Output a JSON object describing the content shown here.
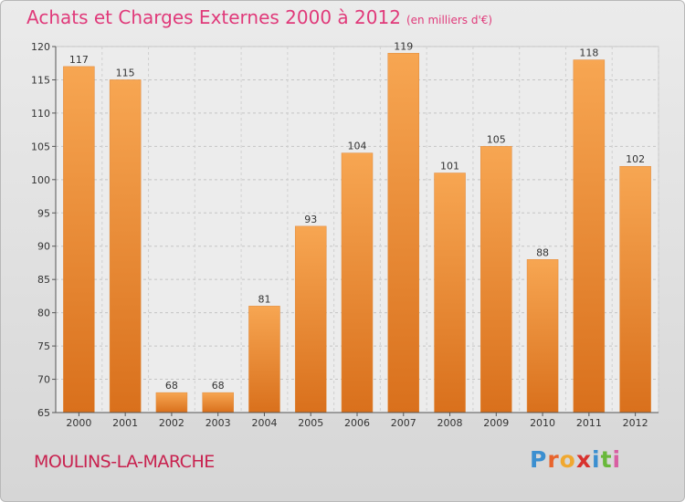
{
  "chart_data": {
    "type": "bar",
    "title": "Achats et Charges Externes 2000 à 2012",
    "subtitle": "(en milliers d'€)",
    "categories": [
      "2000",
      "2001",
      "2002",
      "2003",
      "2004",
      "2005",
      "2006",
      "2007",
      "2008",
      "2009",
      "2010",
      "2011",
      "2012"
    ],
    "values": [
      117,
      115,
      68,
      68,
      81,
      93,
      104,
      119,
      101,
      105,
      88,
      118,
      102
    ],
    "ylim": [
      65,
      120
    ],
    "yticks": [
      65,
      70,
      75,
      80,
      85,
      90,
      95,
      100,
      105,
      110,
      115,
      120
    ],
    "grid": true,
    "bar_color": "#f0923a"
  },
  "location": "MOULINS-LA-MARCHE",
  "brand": {
    "letters": [
      "P",
      "r",
      "o",
      "x",
      "i",
      "t",
      "i"
    ],
    "colors": [
      "#3b8fd0",
      "#e8642c",
      "#f0a830",
      "#d8322e",
      "#3b8fd0",
      "#69b83a",
      "#d85fa2"
    ]
  }
}
